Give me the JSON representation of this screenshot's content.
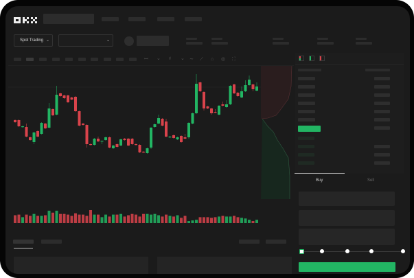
{
  "header": {
    "logo_text": "OKX",
    "nav_placeholders": 4
  },
  "market_bar": {
    "mode_dropdown": {
      "label": "Spot Trading",
      "icon": "chevron-down-icon"
    },
    "pair_dropdown": {
      "label": "",
      "icon": "chevron-down-icon"
    }
  },
  "toolbar": {
    "icons": [
      "candle-type-icon",
      "chevron-down-icon",
      "indicator-icon",
      "chevron-down-icon",
      "line-tool-icon",
      "ruler-icon",
      "camera-icon",
      "settings-icon",
      "fullscreen-icon"
    ]
  },
  "colors": {
    "up": "#22b563",
    "down": "#d9434b",
    "background": "#1b1b1b",
    "placeholder": "#2c2c2c",
    "accent_button": "#22b563"
  },
  "chart_data": {
    "type": "candlestick",
    "candles": [
      [
        68,
        69,
        64,
        65
      ],
      [
        68,
        69,
        58,
        59
      ],
      [
        58,
        60,
        57,
        59
      ],
      [
        58,
        63,
        43,
        44
      ],
      [
        43,
        44,
        38,
        39
      ],
      [
        36,
        51,
        33,
        50
      ],
      [
        52,
        53,
        43,
        44
      ],
      [
        48,
        65,
        47,
        64
      ],
      [
        63,
        64,
        55,
        56
      ],
      [
        57,
        93,
        56,
        85
      ],
      [
        84,
        85,
        74,
        75
      ],
      [
        76,
        118,
        75,
        105
      ],
      [
        107,
        108,
        102,
        103
      ],
      [
        104,
        105,
        99,
        100
      ],
      [
        104,
        105,
        93,
        94
      ],
      [
        101,
        102,
        97,
        98
      ],
      [
        102,
        103,
        80,
        81
      ],
      [
        81,
        82,
        59,
        60
      ],
      [
        63,
        64,
        60,
        61
      ],
      [
        61,
        62,
        28,
        33
      ],
      [
        33,
        34,
        31,
        32
      ],
      [
        32,
        42,
        31,
        41
      ],
      [
        41,
        44,
        36,
        37
      ],
      [
        37,
        38,
        33,
        38
      ],
      [
        39,
        44,
        38,
        43
      ],
      [
        43,
        44,
        27,
        28
      ],
      [
        27,
        32,
        26,
        31
      ],
      [
        33,
        34,
        28,
        29
      ],
      [
        31,
        41,
        30,
        40
      ],
      [
        41,
        42,
        38,
        39
      ],
      [
        41,
        42,
        30,
        31
      ],
      [
        41,
        42,
        32,
        33
      ],
      [
        33,
        34,
        31,
        32
      ],
      [
        32,
        33,
        20,
        21
      ],
      [
        22,
        23,
        20,
        21
      ],
      [
        20,
        28,
        19,
        27
      ],
      [
        28,
        58,
        26,
        57
      ],
      [
        58,
        63,
        57,
        62
      ],
      [
        63,
        76,
        62,
        71
      ],
      [
        70,
        71,
        59,
        60
      ],
      [
        66,
        70,
        43,
        44
      ],
      [
        43,
        45,
        42,
        44
      ],
      [
        46,
        47,
        41,
        42
      ],
      [
        40,
        44,
        39,
        43
      ],
      [
        45,
        46,
        35,
        36
      ],
      [
        43,
        48,
        40,
        41
      ],
      [
        43,
        65,
        41,
        64
      ],
      [
        63,
        79,
        62,
        78
      ],
      [
        78,
        135,
        77,
        121
      ],
      [
        123,
        124,
        109,
        110
      ],
      [
        109,
        110,
        82,
        85
      ],
      [
        88,
        89,
        84,
        85
      ],
      [
        85,
        86,
        76,
        78
      ],
      [
        80,
        84,
        78,
        79
      ],
      [
        76,
        90,
        75,
        89
      ],
      [
        91,
        95,
        88,
        89
      ],
      [
        87,
        97,
        86,
        91
      ],
      [
        91,
        119,
        90,
        118
      ],
      [
        120,
        121,
        106,
        107
      ],
      [
        108,
        109,
        102,
        103
      ],
      [
        101,
        117,
        100,
        110
      ],
      [
        110,
        126,
        109,
        119
      ],
      [
        119,
        133,
        118,
        127
      ],
      [
        120,
        121,
        110,
        113
      ],
      [
        111,
        123,
        110,
        117
      ]
    ],
    "candle_fields": [
      "open",
      "high",
      "low",
      "close"
    ],
    "volumes": [
      10,
      11,
      7,
      11,
      9,
      12,
      9,
      9,
      10,
      17,
      14,
      17,
      12,
      12,
      11,
      9,
      13,
      11,
      11,
      9,
      18,
      11,
      11,
      7,
      11,
      8,
      11,
      11,
      12,
      8,
      10,
      12,
      11,
      8,
      12,
      12,
      11,
      12,
      10,
      8,
      11,
      9,
      8,
      10,
      6,
      9,
      1,
      2,
      3,
      7,
      7,
      7,
      6,
      7,
      8,
      9,
      8,
      8,
      9,
      7,
      6,
      5,
      3,
      1,
      3
    ],
    "price_range": [
      15,
      140
    ],
    "grid": false
  },
  "order_book": {
    "view_icons": [
      "orderbook-both-icon",
      "orderbook-bids-icon",
      "orderbook-asks-icon"
    ]
  },
  "trade_panel": {
    "tabs": [
      {
        "label": "Buy",
        "active": true
      },
      {
        "label": "Sell",
        "active": false
      }
    ],
    "slider_stops": [
      "0%",
      "25%",
      "50%",
      "75%",
      "100%"
    ],
    "slider_value": 0
  }
}
